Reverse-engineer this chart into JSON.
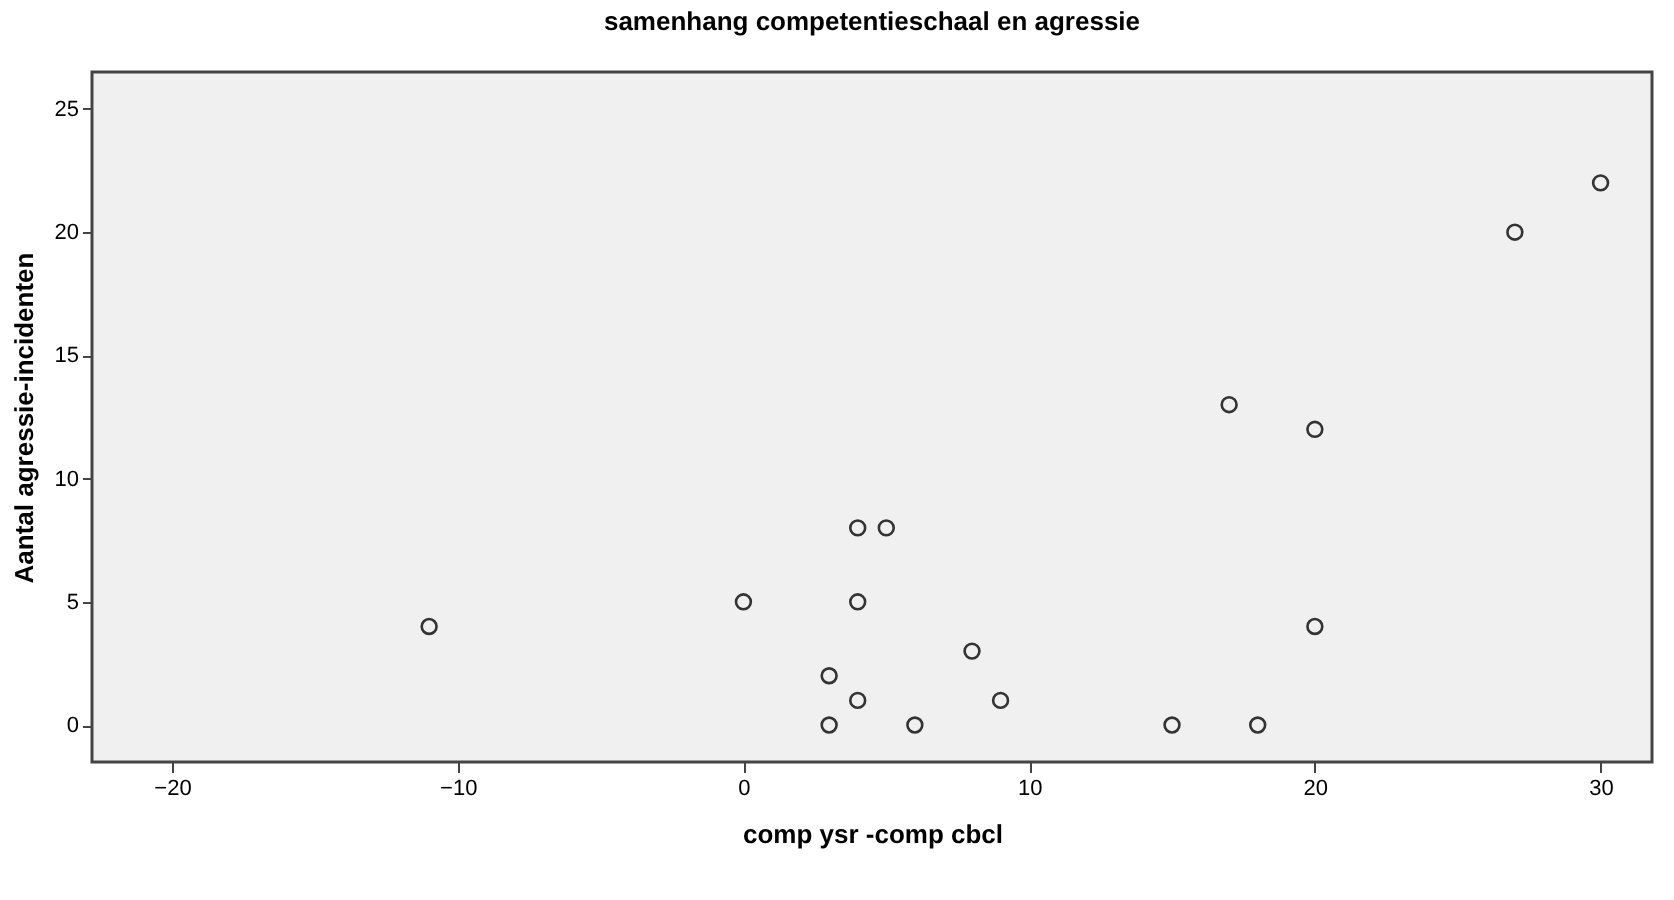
{
  "chart_data": {
    "type": "scatter",
    "title": "samenhang competentieschaal en agressie",
    "xlabel": "comp ysr -comp cbcl",
    "ylabel": "Aantal agressie-incidenten",
    "x": [
      -11,
      0,
      4,
      5,
      4,
      3,
      4,
      3,
      6,
      8,
      9,
      15,
      18,
      17,
      20,
      20,
      27,
      30
    ],
    "values": [
      4,
      5,
      8,
      8,
      5,
      2,
      1,
      0,
      0,
      3,
      1,
      0,
      0,
      13,
      12,
      4,
      20,
      22
    ],
    "color": "#333333",
    "marker": "circle",
    "xlim": [
      -22.8,
      31.8
    ],
    "xticks": [
      -20,
      -10,
      0,
      10,
      20,
      30
    ],
    "ylim": [
      -1.5,
      26.5
    ],
    "yticks": [
      0,
      5,
      10,
      15,
      20,
      25
    ],
    "grid": false
  }
}
